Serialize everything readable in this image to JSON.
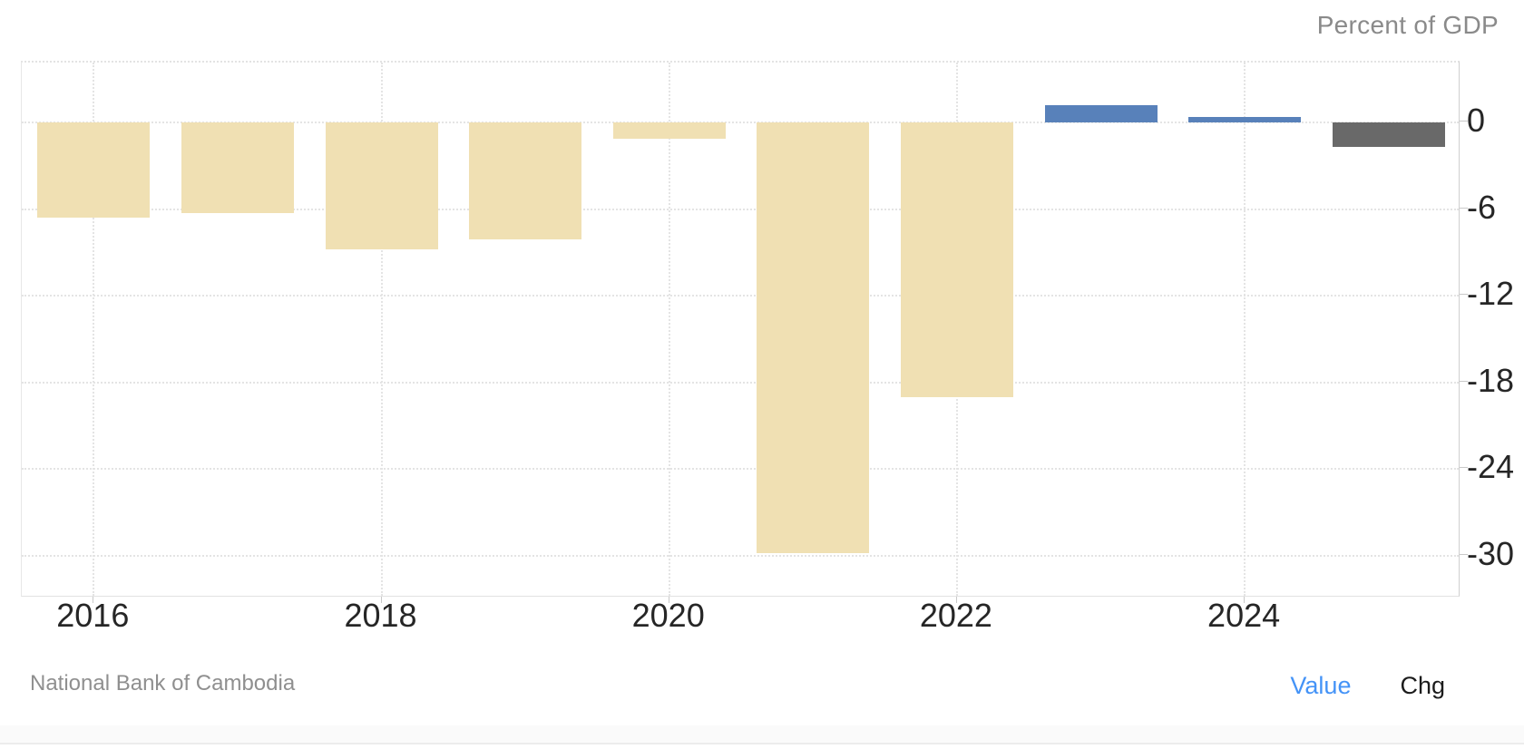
{
  "header": {
    "axis_title": "Percent of GDP"
  },
  "footer": {
    "source": "National Bank of Cambodia",
    "toggles": [
      {
        "label": "Value",
        "active": true
      },
      {
        "label": "Chg",
        "active": false
      }
    ]
  },
  "colors": {
    "negative_bar": "#f0e0b3",
    "positive_bar": "#5881ba",
    "forecast_bar": "#696969",
    "value_link": "#4493f7",
    "chg_link": "#1c1c1c",
    "grid": "#e4e4e4",
    "tick_label": "#262626",
    "muted_text": "#8f8f8f"
  },
  "chart_data": {
    "type": "bar",
    "title": "Percent of GDP",
    "xlabel": "",
    "ylabel": "Percent of GDP",
    "categories": [
      "2016",
      "2017",
      "2018",
      "2019",
      "2020",
      "2021",
      "2022",
      "2023",
      "2024",
      "2025"
    ],
    "values": [
      -6.6,
      -6.3,
      -8.8,
      -8.1,
      -1.1,
      -29.8,
      -19.0,
      1.2,
      0.4,
      -1.7
    ],
    "bar_color_roles": [
      "negative_bar",
      "negative_bar",
      "negative_bar",
      "negative_bar",
      "negative_bar",
      "negative_bar",
      "negative_bar",
      "positive_bar",
      "positive_bar",
      "forecast_bar"
    ],
    "ylim": [
      -32.95,
      4.15
    ],
    "yticks": [
      0,
      -6,
      -12,
      -18,
      -24,
      -30
    ],
    "ytick_labels": [
      "0",
      "-6",
      "-12",
      "-18",
      "-24",
      "-30"
    ],
    "xtick_labels": [
      "2016",
      "2018",
      "2020",
      "2022",
      "2024"
    ],
    "xtick_indices": [
      0,
      2,
      4,
      6,
      8
    ],
    "grid": true,
    "legend_position": "none",
    "source": "National Bank of Cambodia"
  }
}
